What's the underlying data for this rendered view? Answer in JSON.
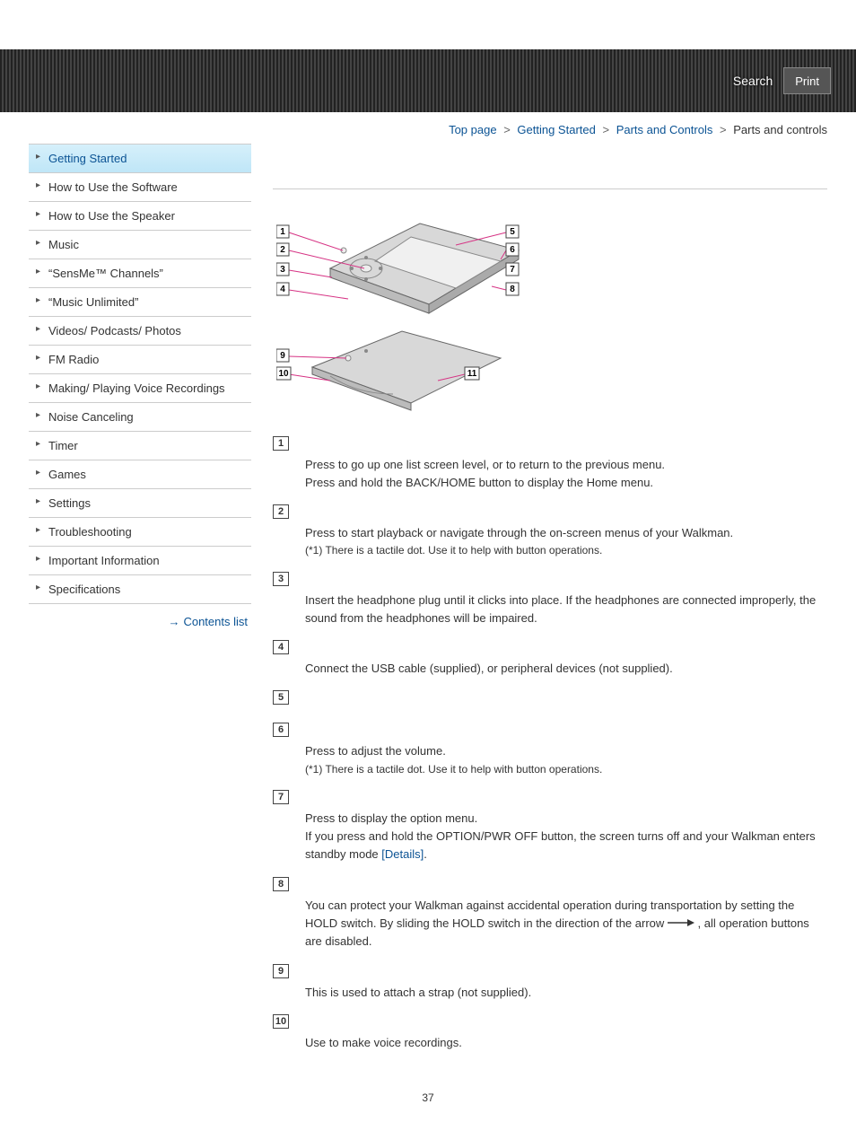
{
  "header": {
    "search": "Search",
    "print": "Print"
  },
  "breadcrumb": {
    "items": [
      {
        "label": "Top page",
        "link": true
      },
      {
        "label": "Getting Started",
        "link": true
      },
      {
        "label": "Parts and Controls",
        "link": true
      },
      {
        "label": "Parts and controls",
        "link": false
      }
    ],
    "sep": ">"
  },
  "sidebar": {
    "items": [
      {
        "label": "Getting Started",
        "active": true
      },
      {
        "label": "How to Use the Software",
        "active": false
      },
      {
        "label": "How to Use the Speaker",
        "active": false
      },
      {
        "label": "Music",
        "active": false
      },
      {
        "label": "“SensMe™ Channels”",
        "active": false
      },
      {
        "label": "“Music Unlimited”",
        "active": false
      },
      {
        "label": "Videos/ Podcasts/ Photos",
        "active": false
      },
      {
        "label": "FM Radio",
        "active": false
      },
      {
        "label": "Making/ Playing Voice Recordings",
        "active": false
      },
      {
        "label": "Noise Canceling",
        "active": false
      },
      {
        "label": "Timer",
        "active": false
      },
      {
        "label": "Games",
        "active": false
      },
      {
        "label": "Settings",
        "active": false
      },
      {
        "label": "Troubleshooting",
        "active": false
      },
      {
        "label": "Important Information",
        "active": false
      },
      {
        "label": "Specifications",
        "active": false
      }
    ],
    "contents_list": "Contents list"
  },
  "diagram": {
    "callouts_left": [
      "1",
      "2",
      "3",
      "4"
    ],
    "callouts_right": [
      "5",
      "6",
      "7",
      "8"
    ],
    "callouts_bottom_left": [
      "9",
      "10"
    ],
    "callouts_bottom_right": [
      "11"
    ],
    "body_color": "#cccccc",
    "screen_color": "#eeeeee",
    "leader_color": "#d63384"
  },
  "parts": [
    {
      "num": "1",
      "lines": [
        "Press to go up one list screen level, or to return to the previous menu.",
        "Press and hold the BACK/HOME button to display the Home menu."
      ]
    },
    {
      "num": "2",
      "lines": [
        "Press to start playback or navigate through the on-screen menus of your Walkman."
      ],
      "note": "(*1) There is a tactile dot. Use it to help with button operations."
    },
    {
      "num": "3",
      "lines": [
        "Insert the headphone plug until it clicks into place. If the headphones are connected improperly, the sound from the headphones will be impaired."
      ]
    },
    {
      "num": "4",
      "lines": [
        "Connect the USB cable (supplied), or peripheral devices (not supplied)."
      ]
    },
    {
      "num": "5",
      "lines": []
    },
    {
      "num": "6",
      "lines": [
        "Press to adjust the volume."
      ],
      "note": "(*1) There is a tactile dot. Use it to help with button operations."
    },
    {
      "num": "7",
      "lines": [
        "Press to display the option menu."
      ],
      "special": "option_pwr"
    },
    {
      "num": "8",
      "lines": [],
      "special": "hold"
    },
    {
      "num": "9",
      "lines": [
        "This is used to attach a strap (not supplied)."
      ]
    },
    {
      "num": "10",
      "lines": [
        "Use to make voice recordings."
      ]
    }
  ],
  "special_text": {
    "option_pwr_pre": "If you press and hold the OPTION/PWR OFF button, the screen turns off and your Walkman enters standby mode ",
    "option_pwr_link": "[Details]",
    "option_pwr_post": ".",
    "hold_pre": "You can protect your Walkman against accidental operation during transportation by setting the HOLD switch. By sliding the HOLD switch in the direction of the arrow ",
    "hold_post": " , all operation buttons are disabled."
  },
  "page_number": "37",
  "colors": {
    "link": "#0b5394",
    "active_bg_top": "#d6f0fb",
    "active_bg_bottom": "#bfe6f7",
    "border": "#cccccc"
  }
}
